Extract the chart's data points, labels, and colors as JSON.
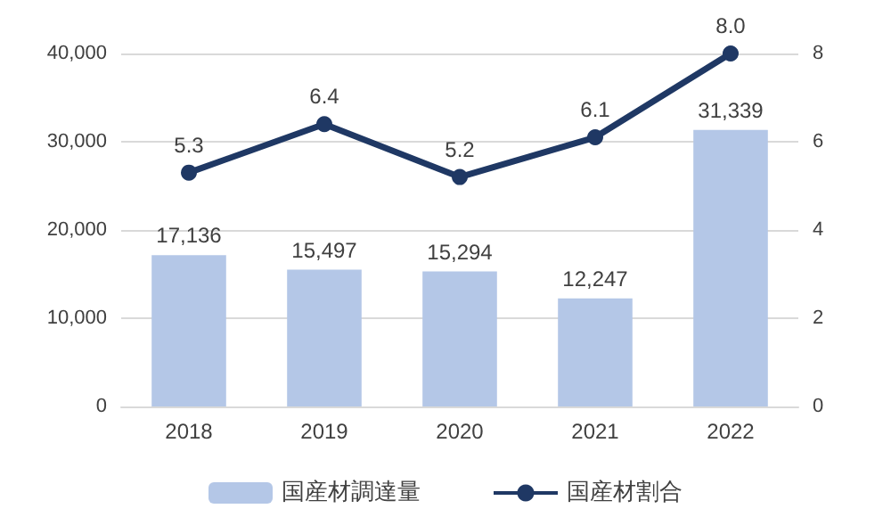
{
  "chart_data": {
    "type": "bar",
    "categories": [
      "2018",
      "2019",
      "2020",
      "2021",
      "2022"
    ],
    "series": [
      {
        "name": "国産材調達量",
        "color": "#b4c7e7",
        "values": [
          17136,
          15497,
          15294,
          12247,
          31339
        ],
        "value_labels": [
          "17,136",
          "15,497",
          "15,294",
          "12,247",
          "31,339"
        ]
      },
      {
        "name": "国産材割合",
        "type": "line",
        "axis": "y2",
        "color": "#1f3864",
        "values": [
          5.3,
          6.4,
          5.2,
          6.1,
          8.0
        ],
        "value_labels": [
          "5.3",
          "6.4",
          "5.2",
          "6.1",
          "8.0"
        ]
      }
    ],
    "ylim": [
      0,
      40000
    ],
    "yticks": [
      {
        "value": 0,
        "label": "0"
      },
      {
        "value": 10000,
        "label": "10,000"
      },
      {
        "value": 20000,
        "label": "20,000"
      },
      {
        "value": 30000,
        "label": "30,000"
      },
      {
        "value": 40000,
        "label": "40,000"
      }
    ],
    "y2lim": [
      0,
      8
    ],
    "y2ticks": [
      0,
      2,
      4,
      6,
      8
    ],
    "grid": "y",
    "legend": "bottom",
    "marker": "circle",
    "line_style": "solid"
  }
}
